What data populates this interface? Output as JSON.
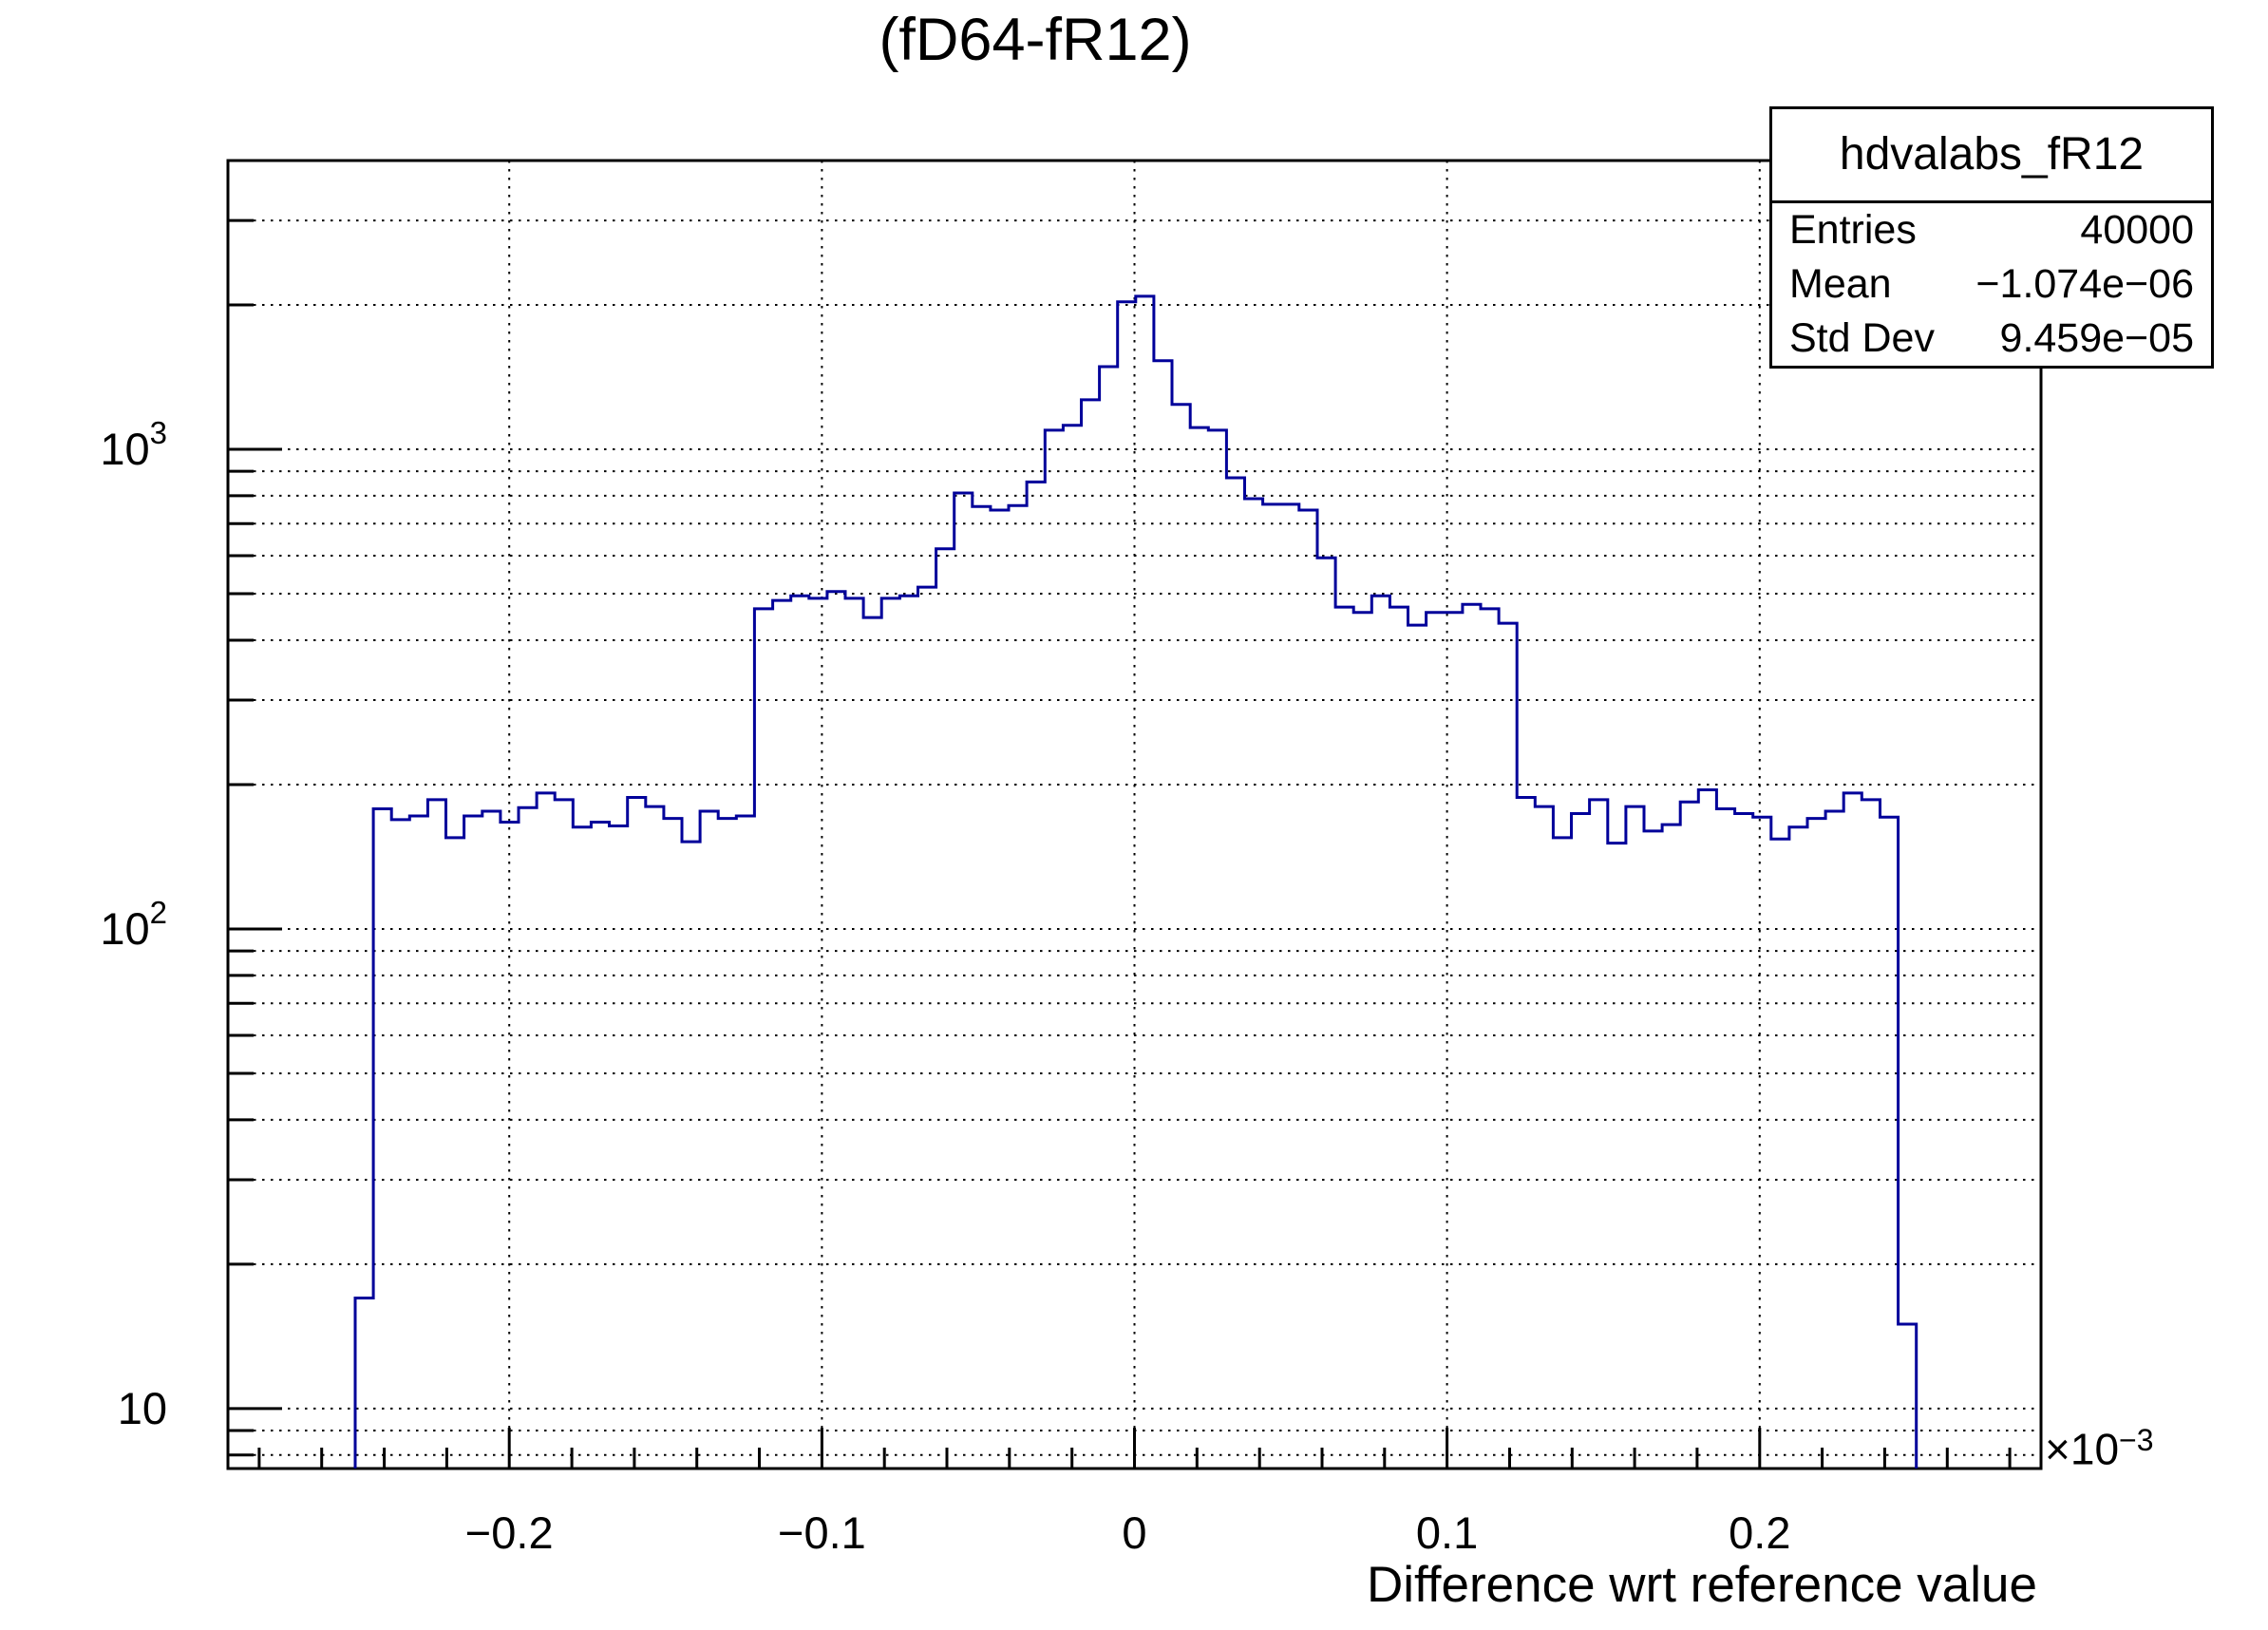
{
  "stats": {
    "name": "hdvalabs_fR12",
    "rows": [
      {
        "label": "Entries",
        "value": "40000"
      },
      {
        "label": "Mean",
        "value": "−1.074e−06"
      },
      {
        "label": "Std Dev",
        "value": "9.459e−05"
      }
    ]
  },
  "chart_data": {
    "type": "bar",
    "subtype": "step-histogram-log-y",
    "title": "(fD64-fR12)",
    "line_color": "#00009a",
    "grid": true,
    "x_axis": {
      "title": "Difference wrt reference value",
      "min": -0.29,
      "max": 0.29,
      "major_ticks": [
        -0.2,
        -0.1,
        0,
        0.1,
        0.2
      ],
      "tick_labels": [
        "−0.2",
        "−0.1",
        "0",
        "0.1",
        "0.2"
      ],
      "minor_tick_step": 0.02,
      "exponent_label": {
        "mantissa": "×10",
        "exp": "−3"
      }
    },
    "y_axis": {
      "scale": "log",
      "min": 7.5,
      "max": 4000,
      "major_ticks": [
        10,
        100,
        1000
      ],
      "tick_labels": [
        {
          "base": "10",
          "exp": ""
        },
        {
          "base": "10",
          "exp": "2"
        },
        {
          "base": "10",
          "exp": "3"
        }
      ]
    },
    "bins": {
      "x_start": -0.2493,
      "bin_width": 0.005807,
      "values": [
        17,
        178,
        169,
        172,
        186,
        155,
        172,
        176,
        167,
        179,
        192,
        186,
        163,
        167,
        164,
        188,
        180,
        170,
        152,
        176,
        170,
        172,
        465,
        484,
        495,
        489,
        505,
        489,
        446,
        489,
        495,
        516,
        620,
        811,
        760,
        747,
        763,
        855,
        1096,
        1122,
        1268,
        1487,
        2030,
        2085,
        1530,
        1240,
        1110,
        1096,
        872,
        789,
        768,
        768,
        747,
        594,
        469,
        457,
        495,
        469,
        430,
        457,
        457,
        475,
        465,
        434,
        188,
        180,
        155,
        174,
        186,
        151,
        180,
        160,
        165,
        184,
        195,
        178,
        174,
        171,
        154,
        163,
        170,
        176,
        192,
        186,
        171,
        15
      ]
    }
  }
}
